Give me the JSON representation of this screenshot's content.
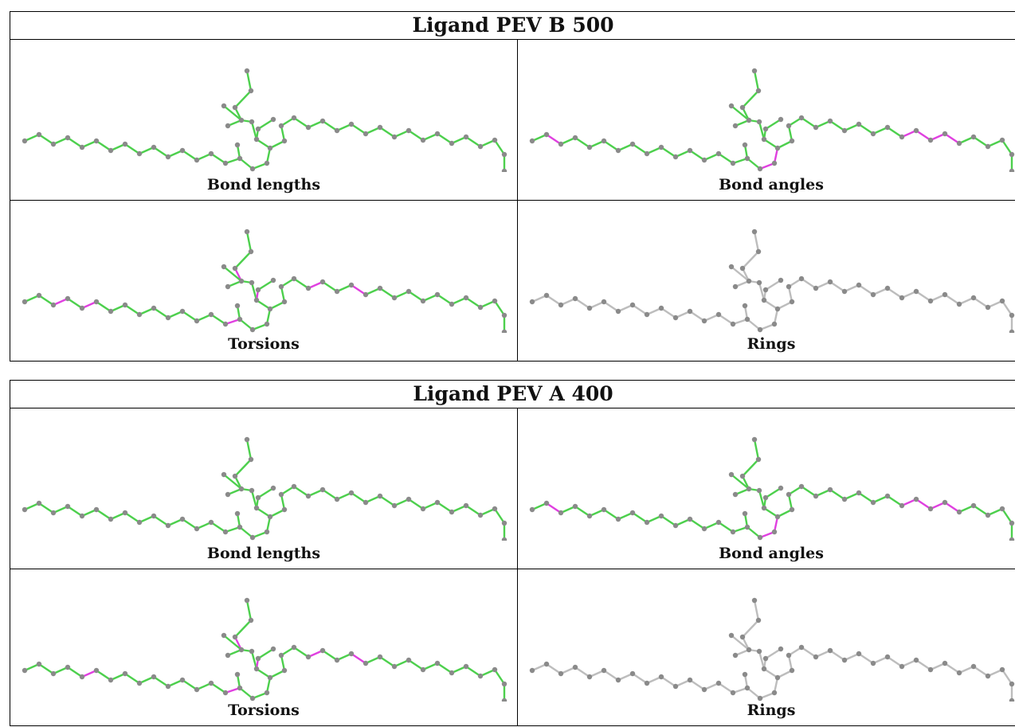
{
  "colors": {
    "ok": "#4dd04d",
    "flag": "#e040e0",
    "none": "#bdbdbd",
    "atom": "#8a8a8a"
  },
  "ligands": [
    {
      "title": "Ligand PEV B 500",
      "panels": [
        {
          "caption": "Bond lengths",
          "default": "ok",
          "flagged_bonds": []
        },
        {
          "caption": "Bond angles",
          "default": "ok",
          "flagged_bonds": [
            1,
            16,
            17,
            28,
            29,
            30,
            31
          ]
        },
        {
          "caption": "Torsions",
          "default": "ok",
          "flagged_bonds": [
            2,
            4,
            14,
            22,
            25,
            41,
            46
          ]
        },
        {
          "caption": "Rings",
          "default": "none",
          "flagged_bonds": []
        }
      ]
    },
    {
      "title": "Ligand PEV A 400",
      "panels": [
        {
          "caption": "Bond lengths",
          "default": "ok",
          "flagged_bonds": []
        },
        {
          "caption": "Bond angles",
          "default": "ok",
          "flagged_bonds": [
            1,
            16,
            17,
            28,
            29,
            30,
            31
          ]
        },
        {
          "caption": "Torsions",
          "default": "ok",
          "flagged_bonds": [
            4,
            14,
            22,
            25,
            41,
            46
          ]
        },
        {
          "caption": "Rings",
          "default": "none",
          "flagged_bonds": []
        }
      ]
    }
  ]
}
